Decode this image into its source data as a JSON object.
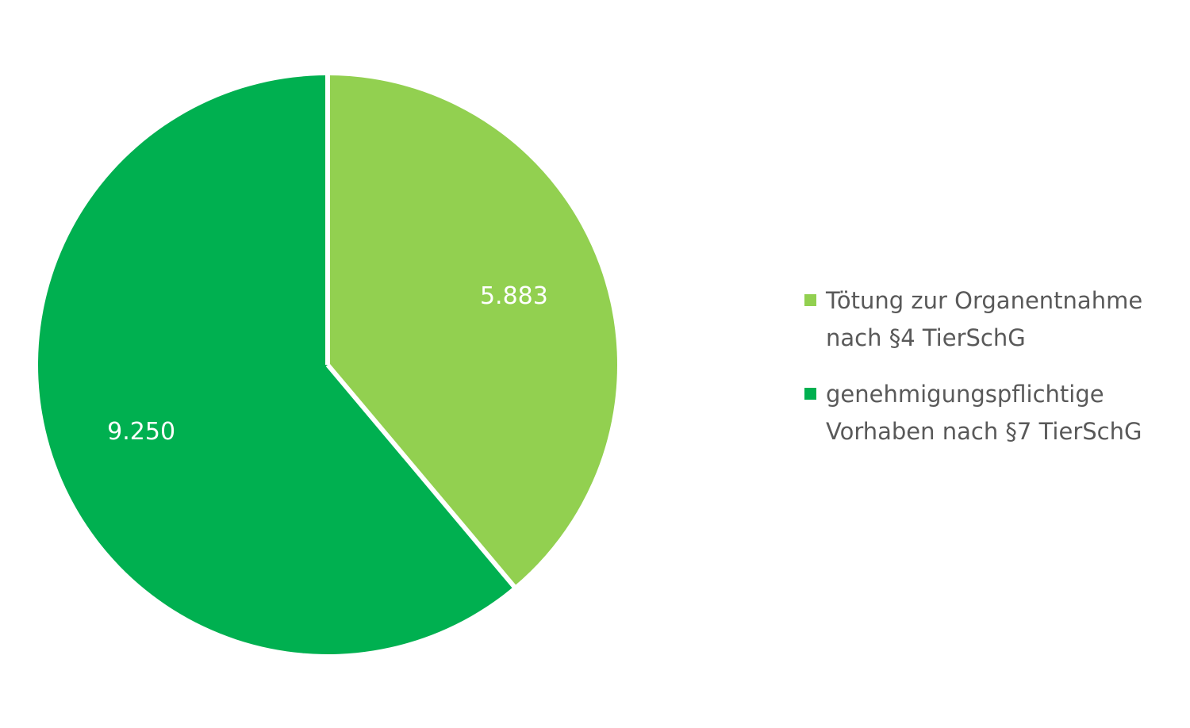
{
  "chart_data": {
    "type": "pie",
    "title": "",
    "slices": [
      {
        "label": "Tötung zur Organentnahme\nnach §4 TierSchG",
        "value": 5883,
        "display": "5.883",
        "color": "#92D050"
      },
      {
        "label": "genehmigungspflichtige\nVorhaben nach §7 TierSchG",
        "value": 9250,
        "display": "9.250",
        "color": "#00B050"
      }
    ],
    "start_angle": "12 o'clock",
    "direction": "clockwise",
    "legend_position": "right",
    "data_label_color": "#FFFFFF",
    "separator_color": "#FFFFFF"
  }
}
